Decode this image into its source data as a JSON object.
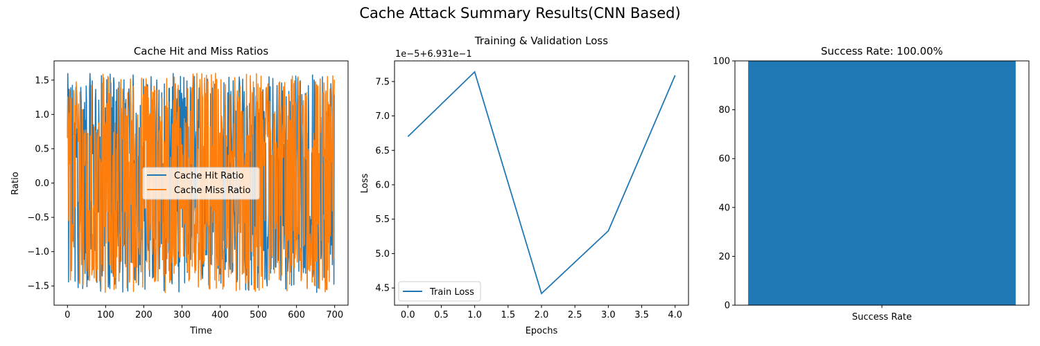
{
  "suptitle": "Cache Attack Summary Results(CNN Based)",
  "colors": {
    "blue": "#1f77b4",
    "orange": "#ff7f0e"
  },
  "chart_data": [
    {
      "type": "line",
      "title": "Cache Hit and Miss Ratios",
      "xlabel": "Time",
      "ylabel": "Ratio",
      "xlim": [
        -35,
        735
      ],
      "ylim": [
        -1.78,
        1.78
      ],
      "xticks": [
        "0",
        "100",
        "200",
        "300",
        "400",
        "500",
        "600",
        "700"
      ],
      "yticks": [
        "−1.5",
        "−1.0",
        "−0.5",
        "0.0",
        "0.5",
        "1.0",
        "1.5"
      ],
      "legend_position": "center-right",
      "series": [
        {
          "name": "Cache Hit Ratio",
          "color": "#1f77b4",
          "n": 700,
          "amplitude": 1.5
        },
        {
          "name": "Cache Miss Ratio",
          "color": "#ff7f0e",
          "n": 700,
          "amplitude": 1.5
        }
      ]
    },
    {
      "type": "line",
      "title": "Training & Validation Loss",
      "offset_text": "1e−5+6.931e−1",
      "xlabel": "Epochs",
      "ylabel": "Loss",
      "xlim": [
        -0.2,
        4.2
      ],
      "ylim": [
        4.25,
        7.8
      ],
      "xticks": [
        "0.0",
        "0.5",
        "1.0",
        "1.5",
        "2.0",
        "2.5",
        "3.0",
        "3.5",
        "4.0"
      ],
      "yticks": [
        "4.5",
        "5.0",
        "5.5",
        "6.0",
        "6.5",
        "7.0",
        "7.5"
      ],
      "legend_position": "lower-left",
      "series": [
        {
          "name": "Train Loss",
          "color": "#1f77b4",
          "x": [
            0,
            1,
            2,
            3,
            4
          ],
          "y": [
            6.7,
            7.64,
            4.42,
            5.33,
            7.59
          ]
        }
      ]
    },
    {
      "type": "bar",
      "title": "Success Rate: 100.00%",
      "categories": [
        "Success Rate"
      ],
      "values": [
        100
      ],
      "ylim": [
        0,
        100
      ],
      "yticks": [
        "0",
        "20",
        "40",
        "60",
        "80",
        "100"
      ],
      "color": "#1f77b4"
    }
  ]
}
